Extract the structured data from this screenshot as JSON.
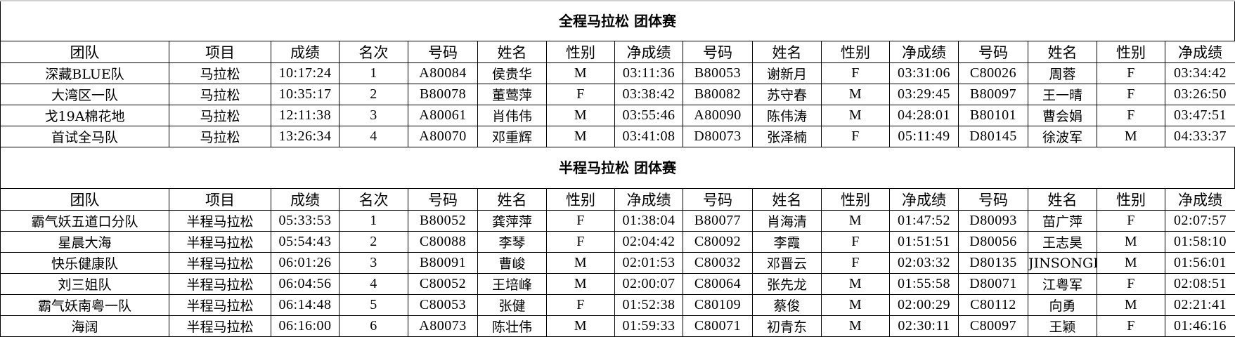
{
  "headers": [
    "团队",
    "项目",
    "成绩",
    "名次",
    "号码",
    "姓名",
    "性别",
    "净成绩",
    "号码",
    "姓名",
    "性别",
    "净成绩",
    "号码",
    "姓名",
    "性别",
    "净成绩"
  ],
  "sections": [
    {
      "title": "全程马拉松 团体赛",
      "rows": [
        [
          "深藏BLUE队",
          "马拉松",
          "10:17:24",
          "1",
          "A80084",
          "侯贵华",
          "M",
          "03:11:36",
          "B80053",
          "谢新月",
          "F",
          "03:31:06",
          "C80026",
          "周蓉",
          "F",
          "03:34:42"
        ],
        [
          "大湾区一队",
          "马拉松",
          "10:35:17",
          "2",
          "B80078",
          "董莺萍",
          "F",
          "03:38:42",
          "B80082",
          "苏守春",
          "M",
          "03:29:45",
          "B80097",
          "王一晴",
          "F",
          "03:26:50"
        ],
        [
          "戈19A棉花地",
          "马拉松",
          "12:11:38",
          "3",
          "A80061",
          "肖伟伟",
          "M",
          "03:55:46",
          "A80090",
          "陈伟涛",
          "M",
          "04:28:01",
          "B80101",
          "曹会娟",
          "F",
          "03:47:51"
        ],
        [
          "首试全马队",
          "马拉松",
          "13:26:34",
          "4",
          "A80070",
          "邓重辉",
          "M",
          "03:41:08",
          "D80073",
          "张泽楠",
          "F",
          "05:11:49",
          "D80145",
          "徐波军",
          "M",
          "04:33:37"
        ]
      ]
    },
    {
      "title": "半程马拉松 团体赛",
      "rows": [
        [
          "霸气妖五道口分队",
          "半程马拉松",
          "05:33:53",
          "1",
          "B80052",
          "龚萍萍",
          "F",
          "01:38:04",
          "B80077",
          "肖海清",
          "M",
          "01:47:52",
          "D80093",
          "苗广萍",
          "F",
          "02:07:57"
        ],
        [
          "星晨大海",
          "半程马拉松",
          "05:54:43",
          "2",
          "C80088",
          "李琴",
          "F",
          "02:04:42",
          "C80092",
          "李霞",
          "F",
          "01:51:51",
          "D80056",
          "王志昊",
          "M",
          "01:58:10"
        ],
        [
          "快乐健康队",
          "半程马拉松",
          "06:01:26",
          "3",
          "B80091",
          "曹峻",
          "M",
          "02:01:53",
          "C80032",
          "邓晋云",
          "F",
          "02:03:32",
          "D80135",
          "JINSONGLIU",
          "M",
          "01:56:01"
        ],
        [
          "刘三姐队",
          "半程马拉松",
          "06:04:56",
          "4",
          "C80052",
          "王培峰",
          "M",
          "02:00:07",
          "C80064",
          "张先龙",
          "M",
          "01:55:58",
          "D80071",
          "江粤军",
          "F",
          "02:08:51"
        ],
        [
          "霸气妖南粤一队",
          "半程马拉松",
          "06:14:48",
          "5",
          "C80053",
          "张健",
          "F",
          "01:52:38",
          "C80109",
          "蔡俊",
          "M",
          "02:00:29",
          "C80112",
          "向勇",
          "M",
          "02:21:41"
        ],
        [
          "海阔",
          "半程马拉松",
          "06:16:00",
          "6",
          "A80073",
          "陈壮伟",
          "M",
          "01:59:33",
          "C80071",
          "初青东",
          "M",
          "02:30:11",
          "C80097",
          "王颖",
          "F",
          "01:46:16"
        ]
      ]
    }
  ]
}
